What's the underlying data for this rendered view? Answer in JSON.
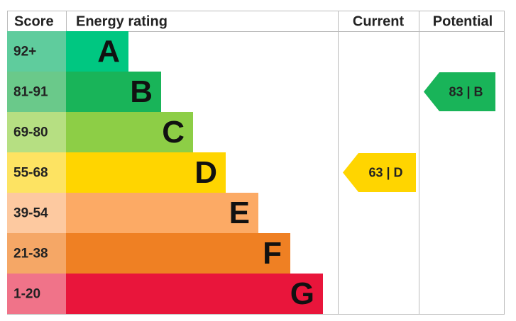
{
  "header": {
    "score": "Score",
    "rating": "Energy rating",
    "current": "Current",
    "potential": "Potential"
  },
  "bands": [
    {
      "score": "92+",
      "letter": "A",
      "color": "#00c781",
      "score_color": "#5fcc9d"
    },
    {
      "score": "81-91",
      "letter": "B",
      "color": "#19b459",
      "score_color": "#6ac98a"
    },
    {
      "score": "69-80",
      "letter": "C",
      "color": "#8dce46",
      "score_color": "#b6df82"
    },
    {
      "score": "55-68",
      "letter": "D",
      "color": "#ffd500",
      "score_color": "#fde362"
    },
    {
      "score": "39-54",
      "letter": "E",
      "color": "#fcaa65",
      "score_color": "#fdc9a0"
    },
    {
      "score": "21-38",
      "letter": "F",
      "color": "#ef8023",
      "score_color": "#f5a766"
    },
    {
      "score": "1-20",
      "letter": "G",
      "color": "#e9153b",
      "score_color": "#f07389"
    }
  ],
  "current": {
    "label": "63 | D"
  },
  "potential": {
    "label": "83 | B"
  }
}
